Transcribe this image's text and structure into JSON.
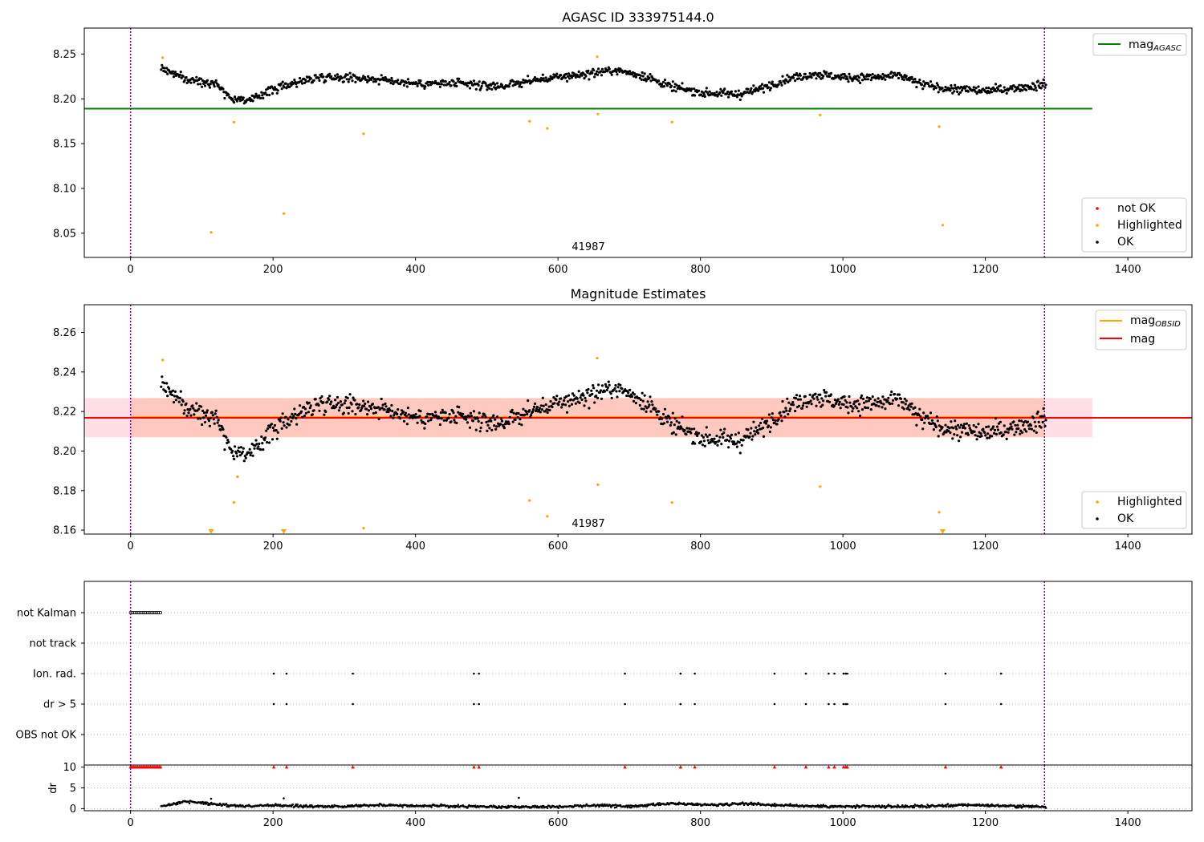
{
  "chart_data": [
    {
      "type": "scatter",
      "title": "AGASC ID 333975144.0",
      "xlabel": "",
      "ylabel": "",
      "xlim": [
        -65,
        1490
      ],
      "ylim": [
        8.023,
        8.279
      ],
      "xticks": [
        0,
        200,
        400,
        600,
        800,
        1000,
        1200,
        1400
      ],
      "yticks": [
        8.05,
        8.1,
        8.15,
        8.2,
        8.25
      ],
      "ytick_labels": [
        "8.05",
        "8.10",
        "8.15",
        "8.20",
        "8.25"
      ],
      "obsid_label": "41987",
      "observation_bounds": [
        0,
        1283
      ],
      "series": [
        {
          "name": "mag_AGASC",
          "kind": "hline",
          "y": 8.189,
          "x_range": [
            -65,
            1350
          ],
          "color": "#008000"
        },
        {
          "name": "not OK",
          "kind": "points",
          "color": "#ff0000",
          "points": []
        },
        {
          "name": "Highlighted",
          "kind": "points",
          "color": "#ffa500",
          "points": [
            [
              45,
              8.246
            ],
            [
              113,
              8.051
            ],
            [
              145,
              8.174
            ],
            [
              215,
              8.072
            ],
            [
              327,
              8.161
            ],
            [
              560,
              8.175
            ],
            [
              585,
              8.167
            ],
            [
              655,
              8.247
            ],
            [
              656,
              8.183
            ],
            [
              760,
              8.174
            ],
            [
              968,
              8.182
            ],
            [
              1135,
              8.169
            ],
            [
              1140,
              8.059
            ]
          ]
        },
        {
          "name": "OK",
          "kind": "points",
          "color": "#000000",
          "x_range": [
            43,
            1285
          ],
          "trend": [
            [
              45,
              8.234
            ],
            [
              80,
              8.221
            ],
            [
              120,
              8.218
            ],
            [
              140,
              8.201
            ],
            [
              170,
              8.198
            ],
            [
              190,
              8.208
            ],
            [
              230,
              8.218
            ],
            [
              270,
              8.225
            ],
            [
              330,
              8.223
            ],
            [
              370,
              8.22
            ],
            [
              400,
              8.217
            ],
            [
              450,
              8.217
            ],
            [
              520,
              8.214
            ],
            [
              560,
              8.22
            ],
            [
              620,
              8.226
            ],
            [
              680,
              8.232
            ],
            [
              720,
              8.226
            ],
            [
              760,
              8.213
            ],
            [
              800,
              8.207
            ],
            [
              850,
              8.205
            ],
            [
              880,
              8.21
            ],
            [
              920,
              8.222
            ],
            [
              960,
              8.228
            ],
            [
              1000,
              8.224
            ],
            [
              1050,
              8.224
            ],
            [
              1080,
              8.226
            ],
            [
              1110,
              8.216
            ],
            [
              1150,
              8.211
            ],
            [
              1200,
              8.209
            ],
            [
              1240,
              8.212
            ],
            [
              1283,
              8.216
            ]
          ],
          "spread": 0.004
        }
      ],
      "legends": [
        {
          "position": "upper right",
          "entries": [
            "mag_AGASC"
          ]
        },
        {
          "position": "lower right",
          "entries": [
            "not OK",
            "Highlighted",
            "OK"
          ]
        }
      ]
    },
    {
      "type": "scatter",
      "title": "Magnitude Estimates",
      "xlabel": "",
      "ylabel": "",
      "xlim": [
        -65,
        1490
      ],
      "ylim": [
        8.158,
        8.274
      ],
      "xticks": [
        0,
        200,
        400,
        600,
        800,
        1000,
        1200,
        1400
      ],
      "yticks": [
        8.16,
        8.18,
        8.2,
        8.22,
        8.24,
        8.26
      ],
      "ytick_labels": [
        "8.16",
        "8.18",
        "8.20",
        "8.22",
        "8.24",
        "8.26"
      ],
      "obsid_label": "41987",
      "observation_bounds": [
        0,
        1283
      ],
      "series": [
        {
          "name": "mag_OBSID",
          "kind": "hline",
          "y": 8.2172,
          "x_range": [
            0,
            1283
          ],
          "color": "#ffa500"
        },
        {
          "name": "mag",
          "kind": "hline",
          "y": 8.2168,
          "x_range": [
            -65,
            1490
          ],
          "color": "#ff0000"
        },
        {
          "name": "mag band",
          "kind": "band",
          "y_range": [
            8.207,
            8.2268
          ],
          "x_range": [
            -65,
            1350
          ],
          "color": "#ffc0cb"
        },
        {
          "name": "mag_OBSID band",
          "kind": "band",
          "y_range": [
            8.207,
            8.2268
          ],
          "x_range": [
            0,
            1283
          ],
          "color": "#ffa07a"
        },
        {
          "name": "Highlighted",
          "kind": "points",
          "color": "#ffa500",
          "points": [
            [
              45,
              8.246
            ],
            [
              145,
              8.174
            ],
            [
              150,
              8.187
            ],
            [
              327,
              8.161
            ],
            [
              560,
              8.175
            ],
            [
              585,
              8.167
            ],
            [
              655,
              8.247
            ],
            [
              656,
              8.183
            ],
            [
              760,
              8.174
            ],
            [
              968,
              8.182
            ],
            [
              1135,
              8.169
            ]
          ]
        },
        {
          "name": "Highlighted (clipped)",
          "kind": "markers_down",
          "color": "#ffa500",
          "points": [
            [
              113,
              8.159
            ],
            [
              215,
              8.159
            ],
            [
              1140,
              8.159
            ]
          ]
        },
        {
          "name": "OK",
          "kind": "points",
          "color": "#000000",
          "x_range": [
            43,
            1285
          ],
          "trend": [
            [
              45,
              8.234
            ],
            [
              80,
              8.221
            ],
            [
              120,
              8.218
            ],
            [
              140,
              8.201
            ],
            [
              170,
              8.198
            ],
            [
              190,
              8.208
            ],
            [
              230,
              8.218
            ],
            [
              270,
              8.225
            ],
            [
              330,
              8.223
            ],
            [
              370,
              8.22
            ],
            [
              400,
              8.217
            ],
            [
              450,
              8.217
            ],
            [
              520,
              8.214
            ],
            [
              560,
              8.22
            ],
            [
              620,
              8.226
            ],
            [
              680,
              8.232
            ],
            [
              720,
              8.226
            ],
            [
              760,
              8.213
            ],
            [
              800,
              8.207
            ],
            [
              850,
              8.205
            ],
            [
              880,
              8.21
            ],
            [
              920,
              8.222
            ],
            [
              960,
              8.228
            ],
            [
              1000,
              8.224
            ],
            [
              1050,
              8.224
            ],
            [
              1080,
              8.226
            ],
            [
              1110,
              8.216
            ],
            [
              1150,
              8.211
            ],
            [
              1200,
              8.209
            ],
            [
              1240,
              8.212
            ],
            [
              1283,
              8.216
            ]
          ],
          "spread": 0.004
        }
      ],
      "legends": [
        {
          "position": "upper right",
          "entries": [
            "mag_OBSID",
            "mag"
          ]
        },
        {
          "position": "lower right",
          "entries": [
            "Highlighted",
            "OK"
          ]
        }
      ]
    },
    {
      "type": "scatter",
      "title": "",
      "xlabel": "",
      "ylabel": "",
      "xlim": [
        -65,
        1490
      ],
      "xticks": [
        0,
        200,
        400,
        600,
        800,
        1000,
        1200,
        1400
      ],
      "observation_bounds": [
        0,
        1283
      ],
      "flag_rows": [
        "not Kalman",
        "not track",
        "Ion. rad.",
        "dr > 5",
        "OBS not OK"
      ],
      "flags": {
        "not Kalman": {
          "x_range": [
            0,
            43
          ],
          "step": 2
        },
        "not track": {
          "points": []
        },
        "Ion. rad.": {
          "points": [
            201,
            219,
            312,
            482,
            489,
            694,
            772,
            792,
            904,
            948,
            980,
            988,
            1001,
            1004,
            1006,
            1144,
            1222
          ]
        },
        "dr > 5": {
          "points": [
            201,
            219,
            312,
            482,
            489,
            694,
            772,
            792,
            904,
            948,
            980,
            988,
            1001,
            1004,
            1006,
            1144,
            1222
          ]
        },
        "OBS not OK": {
          "points": []
        }
      }
    },
    {
      "type": "scatter",
      "title": "",
      "xlabel": "",
      "ylabel": "dr",
      "xlim": [
        -65,
        1490
      ],
      "ylim": [
        -0.5,
        10.5
      ],
      "xticks": [
        0,
        200,
        400,
        600,
        800,
        1000,
        1200,
        1400
      ],
      "xtick_labels": [
        "0",
        "200",
        "400",
        "600",
        "800",
        "1000",
        "1200",
        "1400"
      ],
      "yticks": [
        0,
        5,
        10
      ],
      "ytick_labels": [
        "0",
        "5",
        "10"
      ],
      "observation_bounds": [
        0,
        1283
      ],
      "series": [
        {
          "name": "dr > 5 (clipped)",
          "kind": "markers_up",
          "color": "#ff0000",
          "points": [
            201,
            219,
            312,
            482,
            489,
            694,
            772,
            792,
            904,
            948,
            980,
            988,
            1001,
            1004,
            1006,
            1144,
            1222
          ],
          "y": 10,
          "x_range_dense": [
            0,
            43
          ]
        },
        {
          "name": "dr",
          "kind": "points",
          "color": "#000000",
          "x_range": [
            43,
            1285
          ],
          "trend": [
            [
              45,
              0.5
            ],
            [
              75,
              1.8
            ],
            [
              100,
              1.4
            ],
            [
              130,
              0.9
            ],
            [
              160,
              0.6
            ],
            [
              200,
              0.8
            ],
            [
              260,
              0.5
            ],
            [
              300,
              0.6
            ],
            [
              340,
              0.9
            ],
            [
              400,
              0.7
            ],
            [
              450,
              0.6
            ],
            [
              520,
              0.4
            ],
            [
              600,
              0.5
            ],
            [
              660,
              0.8
            ],
            [
              700,
              0.5
            ],
            [
              760,
              1.2
            ],
            [
              820,
              0.9
            ],
            [
              860,
              1.3
            ],
            [
              900,
              0.9
            ],
            [
              960,
              0.6
            ],
            [
              1000,
              0.5
            ],
            [
              1060,
              0.5
            ],
            [
              1120,
              0.6
            ],
            [
              1180,
              0.9
            ],
            [
              1240,
              0.6
            ],
            [
              1283,
              0.5
            ]
          ],
          "spread": 0.25,
          "outliers": [
            [
              113,
              2.4
            ],
            [
              215,
              2.5
            ],
            [
              545,
              2.6
            ]
          ]
        }
      ]
    }
  ],
  "legend_labels": {
    "mag_AGASC_base": "mag",
    "mag_AGASC_sub": "AGASC",
    "mag_OBSID_base": "mag",
    "mag_OBSID_sub": "OBSID",
    "mag": "mag",
    "not_ok": "not OK",
    "highlighted": "Highlighted",
    "ok": "OK"
  }
}
